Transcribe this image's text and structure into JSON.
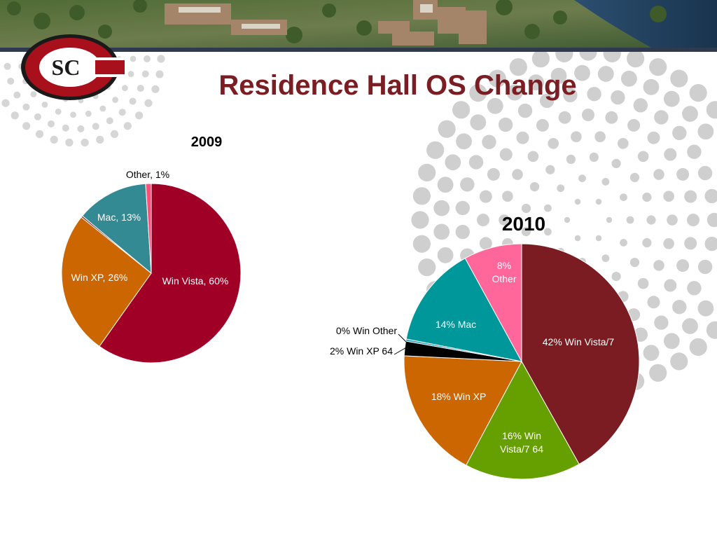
{
  "slide": {
    "title": "Residence Hall OS Change",
    "logo_text": "SC"
  },
  "colors": {
    "title": "#7a1e24",
    "banner_bar": "#2f3a4f",
    "deco_dots": "#c8c8c8"
  },
  "chart_data": [
    {
      "type": "pie",
      "title": "2009",
      "slices": [
        {
          "label": "Win Vista, 60%",
          "value": 60,
          "color": "#a10026",
          "label_color": "#ffffff"
        },
        {
          "label": "",
          "value": 0,
          "color": "#6b0a14",
          "label_color": "#ffffff"
        },
        {
          "label": "Win XP, 26%",
          "value": 26,
          "color": "#cc6600",
          "label_color": "#ffffff"
        },
        {
          "label": "",
          "value": 0.3,
          "color": "#8e1a1a",
          "label_color": "#ffffff"
        },
        {
          "label": "Mac, 13%",
          "value": 13,
          "color": "#348a93",
          "label_color": "#ffffff"
        },
        {
          "label": "Other, 1%",
          "value": 1,
          "color": "#ff4f7b",
          "label_color": "#000000"
        }
      ]
    },
    {
      "type": "pie",
      "title": "2010",
      "slices": [
        {
          "label": "42% Win Vista/7",
          "value": 42,
          "color": "#7a1c22",
          "label_color": "#ffffff"
        },
        {
          "label": "16% Win Vista/7 64",
          "value": 16,
          "color": "#66a000",
          "label_color": "#ffffff"
        },
        {
          "label": "18% Win XP",
          "value": 18,
          "color": "#cc6600",
          "label_color": "#ffffff"
        },
        {
          "label": "2% Win XP 64",
          "value": 2,
          "color": "#000000",
          "label_color": "#000000"
        },
        {
          "label": "0% Win Other",
          "value": 0.3,
          "color": "#33a3c2",
          "label_color": "#000000"
        },
        {
          "label": "14% Mac",
          "value": 14,
          "color": "#00979a",
          "label_color": "#ffffff"
        },
        {
          "label": "8% Other",
          "value": 8,
          "color": "#ff6699",
          "label_color": "#ffffff"
        }
      ]
    }
  ]
}
